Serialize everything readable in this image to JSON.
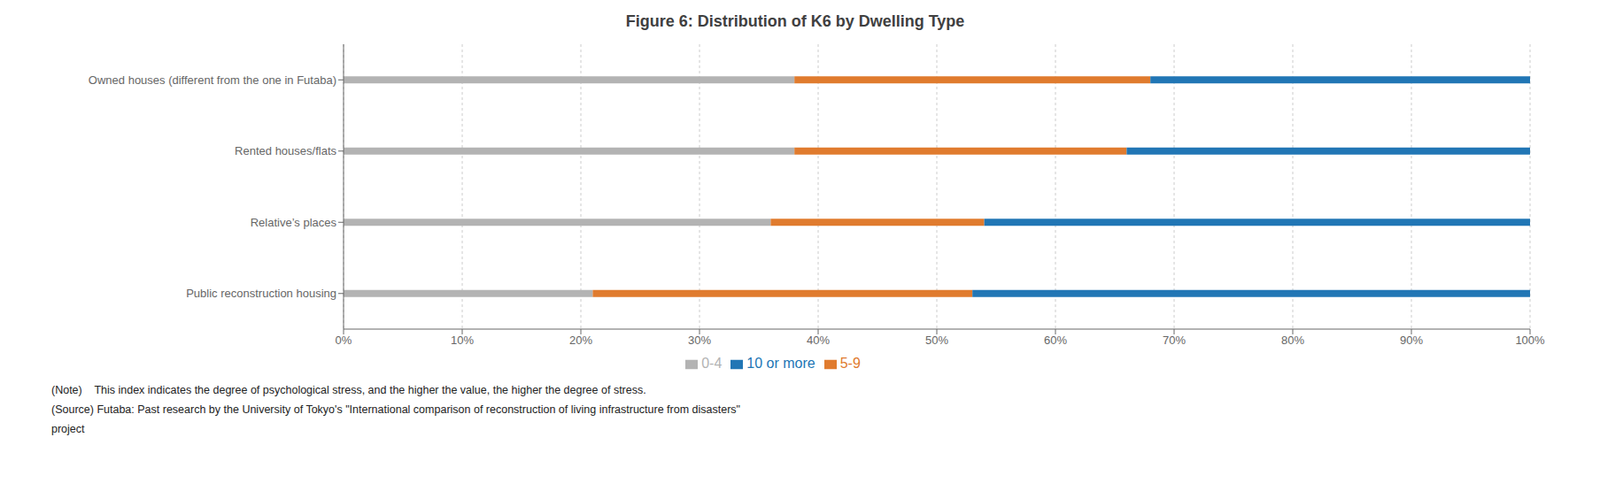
{
  "chart_data": {
    "type": "bar",
    "title": "Figure 6: Distribution of K6 by Dwelling Type",
    "orientation": "horizontal",
    "stacked": true,
    "categories": [
      "Owned houses (different from the one in Futaba)",
      "Rented houses/flats",
      "Relative’s places",
      "Public reconstruction housing"
    ],
    "series": [
      {
        "name": "0-4",
        "color": "#b3b3b3",
        "values": [
          38,
          38,
          36,
          21
        ]
      },
      {
        "name": "5-9",
        "color": "#e07b2e",
        "values": [
          30,
          28,
          18,
          32
        ]
      },
      {
        "name": "10 or more",
        "color": "#2176b5",
        "values": [
          32,
          34,
          46,
          47
        ]
      }
    ],
    "xlim": [
      0,
      100
    ],
    "xticks": [
      {
        "value": 0,
        "label": "0%"
      },
      {
        "value": 10,
        "label": "10%"
      },
      {
        "value": 20,
        "label": "20%"
      },
      {
        "value": 30,
        "label": "30%"
      },
      {
        "value": 40,
        "label": "40%"
      },
      {
        "value": 50,
        "label": "50%"
      },
      {
        "value": 60,
        "label": "60%"
      },
      {
        "value": 70,
        "label": "70%"
      },
      {
        "value": 80,
        "label": "80%"
      },
      {
        "value": 90,
        "label": "90%"
      },
      {
        "value": 100,
        "label": "100%"
      }
    ],
    "grid": true,
    "legend": "bottom",
    "annotations": [
      "(Note)    This index indicates the degree of psychological stress, and the higher the value, the higher the degree of stress.",
      "(Source) Futaba: Past research by the University of Tokyo's \"International comparison of reconstruction of living infrastructure from disasters\"",
      "project"
    ]
  }
}
